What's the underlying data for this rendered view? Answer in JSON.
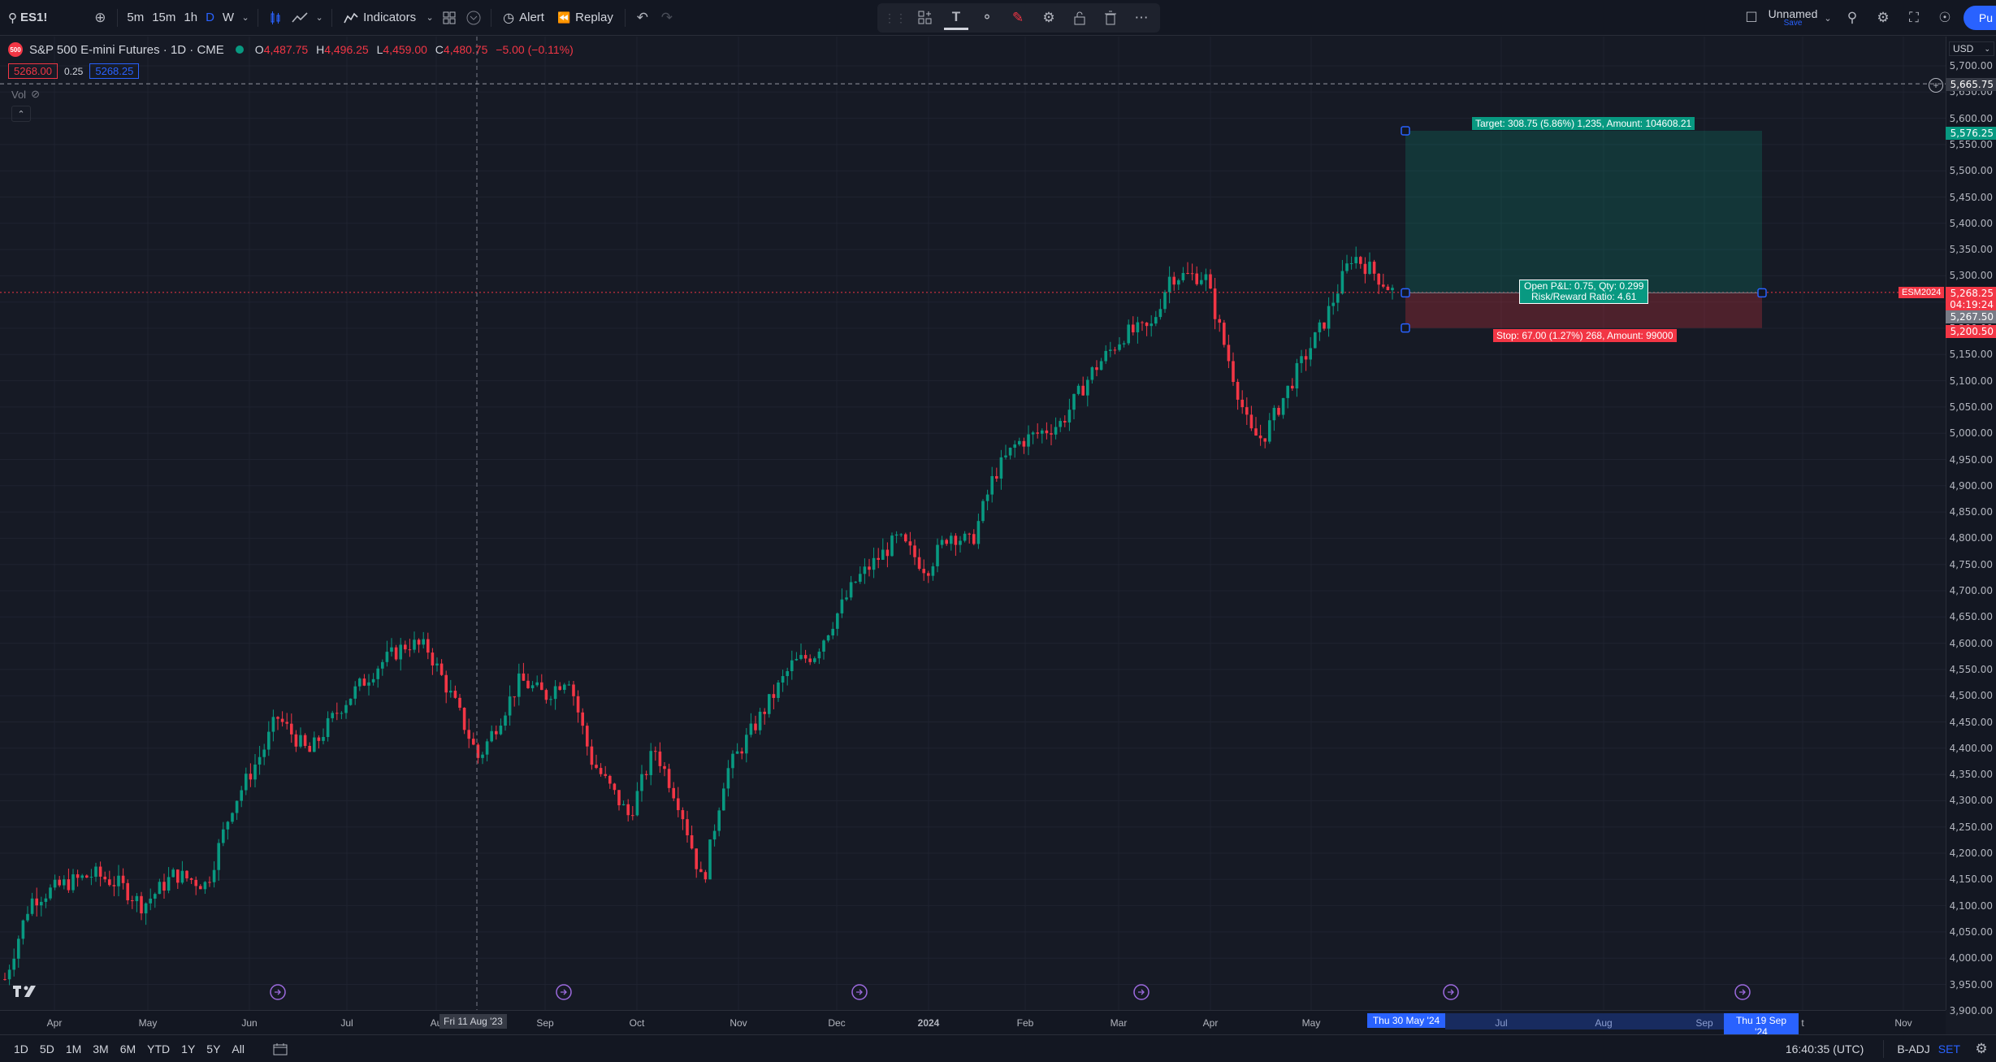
{
  "topbar": {
    "symbol": "ES1!",
    "intervals": [
      "5m",
      "15m",
      "1h",
      "D",
      "W"
    ],
    "active_interval": "D",
    "indicators_label": "Indicators",
    "alert_label": "Alert",
    "replay_label": "Replay",
    "layout_name": "Unnamed",
    "layout_save": "Save",
    "publish_label": "Pu"
  },
  "legend": {
    "title": "S&P 500 E-mini Futures · 1D · CME",
    "logo_text": "500",
    "o_label": "O",
    "o_value": "4,487.75",
    "h_label": "H",
    "h_value": "4,496.25",
    "l_label": "L",
    "l_value": "4,459.00",
    "c_label": "C",
    "c_value": "4,480.75",
    "change": "−5.00 (−0.11%)",
    "sell_price": "5268.00",
    "spread": "0.25",
    "buy_price": "5268.25",
    "vol_label": "Vol"
  },
  "price_axis": {
    "currency": "USD",
    "labels": [
      "5,700.00",
      "5,650.00",
      "5,600.00",
      "5,550.00",
      "5,500.00",
      "5,450.00",
      "5,400.00",
      "5,350.00",
      "5,300.00",
      "5,250.00",
      "5,200.00",
      "5,150.00",
      "5,100.00",
      "5,050.00",
      "5,000.00",
      "4,950.00",
      "4,900.00",
      "4,850.00",
      "4,800.00",
      "4,750.00",
      "4,700.00",
      "4,650.00",
      "4,600.00",
      "4,550.00",
      "4,500.00",
      "4,450.00",
      "4,400.00",
      "4,350.00",
      "4,300.00",
      "4,250.00",
      "4,200.00",
      "4,150.00",
      "4,100.00",
      "4,050.00",
      "4,000.00",
      "3,950.00",
      "3,900.00"
    ],
    "crosshair_price": "5,665.75",
    "target_price": "5,576.25",
    "last_price": "5,268.25",
    "countdown": "04:19:24",
    "entry_price": "5,267.50",
    "stop_price": "5,200.50",
    "contract_tag": "ESM2024"
  },
  "time_axis": {
    "labels": [
      "Apr",
      "May",
      "Jun",
      "Jul",
      "Au",
      "Sep",
      "Oct",
      "Nov",
      "Dec",
      "2024",
      "Feb",
      "Mar",
      "Apr",
      "May",
      "Jul",
      "Aug",
      "Sep",
      "t",
      "Nov"
    ],
    "crosshair_date": "Fri 11 Aug '23",
    "position_start": "Thu 30 May '24",
    "position_end": "Thu 19 Sep '24"
  },
  "position": {
    "target_text": "Target: 308.75 (5.86%) 1,235, Amount: 104608.21",
    "pnl_text": "Open P&L: 0.75, Qty: 0.299",
    "rr_text": "Risk/Reward Ratio: 4.61",
    "stop_text": "Stop: 67.00 (1.27%) 268, Amount: 99000"
  },
  "bottombar": {
    "ranges": [
      "1D",
      "5D",
      "1M",
      "3M",
      "6M",
      "YTD",
      "1Y",
      "5Y",
      "All"
    ],
    "clock": "16:40:35 (UTC)",
    "adj": "B-ADJ",
    "session": "SET"
  },
  "colors": {
    "up": "#089981",
    "down": "#f23645",
    "accent": "#2962ff",
    "background": "#161a25"
  },
  "chart_data": {
    "type": "candlestick",
    "symbol": "ES1!",
    "ylim": [
      3900,
      5700
    ],
    "y_scale": "linear",
    "grid": true,
    "path_anchors": [
      [
        "2023-03-23",
        3960
      ],
      [
        "2023-03-31",
        4110
      ],
      [
        "2023-04-10",
        4140
      ],
      [
        "2023-04-20",
        4160
      ],
      [
        "2023-04-28",
        4140
      ],
      [
        "2023-05-05",
        4100
      ],
      [
        "2023-05-15",
        4160
      ],
      [
        "2023-05-25",
        4140
      ],
      [
        "2023-06-02",
        4290
      ],
      [
        "2023-06-12",
        4400
      ],
      [
        "2023-06-16",
        4460
      ],
      [
        "2023-06-26",
        4390
      ],
      [
        "2023-07-06",
        4480
      ],
      [
        "2023-07-18",
        4560
      ],
      [
        "2023-07-27",
        4600
      ],
      [
        "2023-08-02",
        4590
      ],
      [
        "2023-08-11",
        4480
      ],
      [
        "2023-08-18",
        4380
      ],
      [
        "2023-08-31",
        4530
      ],
      [
        "2023-09-08",
        4500
      ],
      [
        "2023-09-15",
        4540
      ],
      [
        "2023-09-22",
        4380
      ],
      [
        "2023-10-04",
        4270
      ],
      [
        "2023-10-12",
        4400
      ],
      [
        "2023-10-20",
        4290
      ],
      [
        "2023-10-27",
        4140
      ],
      [
        "2023-11-03",
        4350
      ],
      [
        "2023-11-14",
        4460
      ],
      [
        "2023-11-24",
        4560
      ],
      [
        "2023-12-01",
        4580
      ],
      [
        "2023-12-14",
        4720
      ],
      [
        "2023-12-27",
        4800
      ],
      [
        "2024-01-05",
        4740
      ],
      [
        "2024-01-12",
        4810
      ],
      [
        "2024-01-19",
        4790
      ],
      [
        "2024-01-26",
        4920
      ],
      [
        "2024-02-02",
        4980
      ],
      [
        "2024-02-16",
        5020
      ],
      [
        "2024-02-26",
        5120
      ],
      [
        "2024-03-07",
        5190
      ],
      [
        "2024-03-15",
        5200
      ],
      [
        "2024-03-21",
        5300
      ],
      [
        "2024-04-01",
        5300
      ],
      [
        "2024-04-05",
        5210
      ],
      [
        "2024-04-15",
        5000
      ],
      [
        "2024-04-19",
        4990
      ],
      [
        "2024-04-29",
        5110
      ],
      [
        "2024-05-08",
        5210
      ],
      [
        "2024-05-17",
        5340
      ],
      [
        "2024-05-23",
        5310
      ],
      [
        "2024-05-30",
        5268
      ]
    ],
    "position_entry": 5267.5,
    "position_target": 5576.25,
    "position_stop": 5200.5
  }
}
